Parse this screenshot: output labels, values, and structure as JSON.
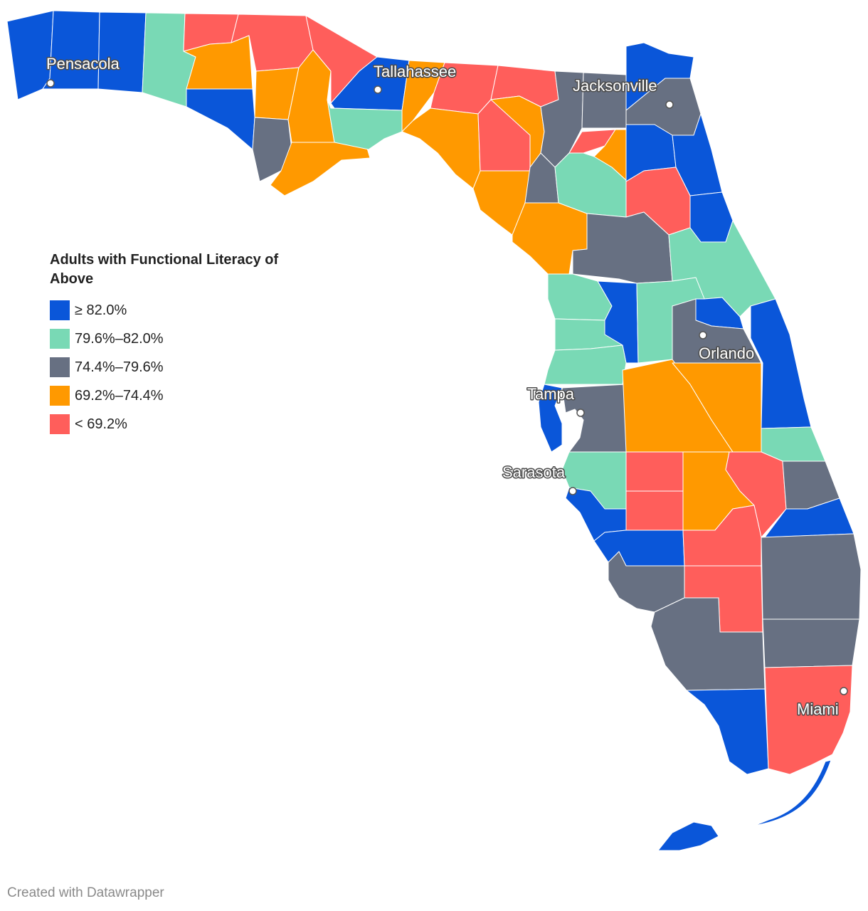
{
  "legend": {
    "title": "Adults with Functional Literacy of Above",
    "items": [
      {
        "label": "≥ 82.0%",
        "color": "#0a56d9"
      },
      {
        "label": "79.6%–82.0%",
        "color": "#79d9b5"
      },
      {
        "label": "74.4%–79.6%",
        "color": "#677082"
      },
      {
        "label": "69.2%–74.4%",
        "color": "#ff9900"
      },
      {
        "label": "< 69.2%",
        "color": "#ff5e5b"
      }
    ]
  },
  "cities": {
    "pensacola": "Pensacola",
    "tallahassee": "Tallahassee",
    "jacksonville": "Jacksonville",
    "orlando": "Orlando",
    "tampa": "Tampa",
    "sarasota": "Sarasota",
    "miami": "Miami"
  },
  "credit": "Created with Datawrapper"
}
